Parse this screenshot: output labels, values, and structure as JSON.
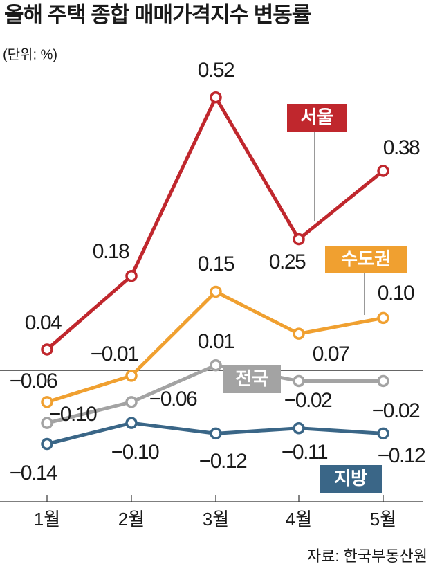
{
  "chart_data": {
    "type": "line",
    "title": "올해 주택 종합 매매가격지수 변동률",
    "subtitle": "(단위: %)",
    "source": "자료: 한국부동산원",
    "categories": [
      "1월",
      "2월",
      "3월",
      "4월",
      "5월"
    ],
    "ylim": [
      -0.25,
      0.6
    ],
    "series": [
      {
        "name": "서울",
        "color": "#c0272d",
        "values": [
          0.04,
          0.18,
          0.52,
          0.25,
          0.38
        ],
        "value_labels": [
          "0.04",
          "0.18",
          "0.52",
          "0.25",
          "0.38"
        ]
      },
      {
        "name": "수도권",
        "color": "#f0a030",
        "values": [
          -0.06,
          -0.01,
          0.15,
          0.07,
          0.1
        ],
        "value_labels": [
          "−0.06",
          "−0.01",
          "0.15",
          "0.07",
          "0.10"
        ]
      },
      {
        "name": "전국",
        "color": "#a3a3a3",
        "values": [
          -0.1,
          -0.06,
          0.01,
          -0.02,
          -0.02
        ],
        "value_labels": [
          "−0.10",
          "−0.06",
          "0.01",
          "−0.02",
          "−0.02"
        ]
      },
      {
        "name": "지방",
        "color": "#3a6687",
        "values": [
          -0.14,
          -0.1,
          -0.12,
          -0.11,
          -0.12
        ],
        "value_labels": [
          "−0.14",
          "−0.10",
          "−0.12",
          "−0.11",
          "−0.12"
        ]
      }
    ]
  }
}
